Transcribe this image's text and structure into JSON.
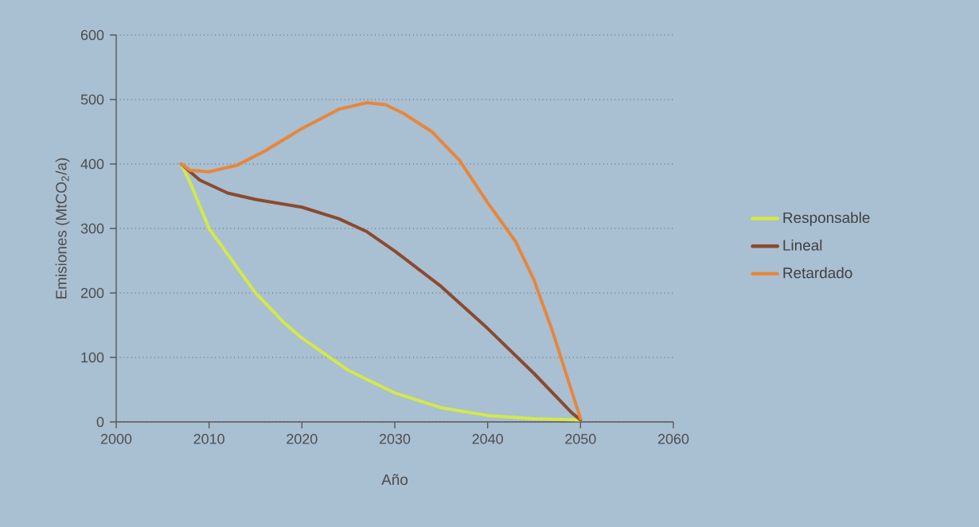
{
  "chart_data": {
    "type": "line",
    "xlabel": "Año",
    "ylabel": "Emisiones (MtCO$_{2}$/a)",
    "xlim": [
      2000,
      2060
    ],
    "ylim": [
      0,
      600
    ],
    "xticks": [
      2000,
      2010,
      2020,
      2030,
      2040,
      2050,
      2060
    ],
    "yticks": [
      0,
      100,
      200,
      300,
      400,
      500,
      600
    ],
    "grid": "y",
    "legend": "right",
    "series": [
      {
        "name": "Responsable",
        "color": "#d4e84a",
        "x": [
          2007,
          2008,
          2010,
          2012,
          2015,
          2018,
          2020,
          2023,
          2025,
          2030,
          2035,
          2040,
          2045,
          2050
        ],
        "values": [
          400,
          370,
          300,
          260,
          200,
          155,
          130,
          100,
          80,
          45,
          22,
          10,
          5,
          3
        ]
      },
      {
        "name": "Lineal",
        "color": "#8b4a2e",
        "x": [
          2007,
          2009,
          2012,
          2015,
          2020,
          2024,
          2027,
          2030,
          2035,
          2040,
          2045,
          2049,
          2050
        ],
        "values": [
          400,
          375,
          355,
          345,
          333,
          315,
          295,
          265,
          210,
          145,
          75,
          15,
          3
        ]
      },
      {
        "name": "Retardado",
        "color": "#e8863a",
        "x": [
          2007,
          2008,
          2010,
          2013,
          2016,
          2020,
          2024,
          2027,
          2029,
          2031,
          2034,
          2037,
          2040,
          2043,
          2045,
          2047,
          2049,
          2050
        ],
        "values": [
          400,
          390,
          388,
          398,
          420,
          455,
          485,
          495,
          492,
          478,
          450,
          405,
          340,
          280,
          220,
          140,
          50,
          5
        ]
      }
    ]
  }
}
